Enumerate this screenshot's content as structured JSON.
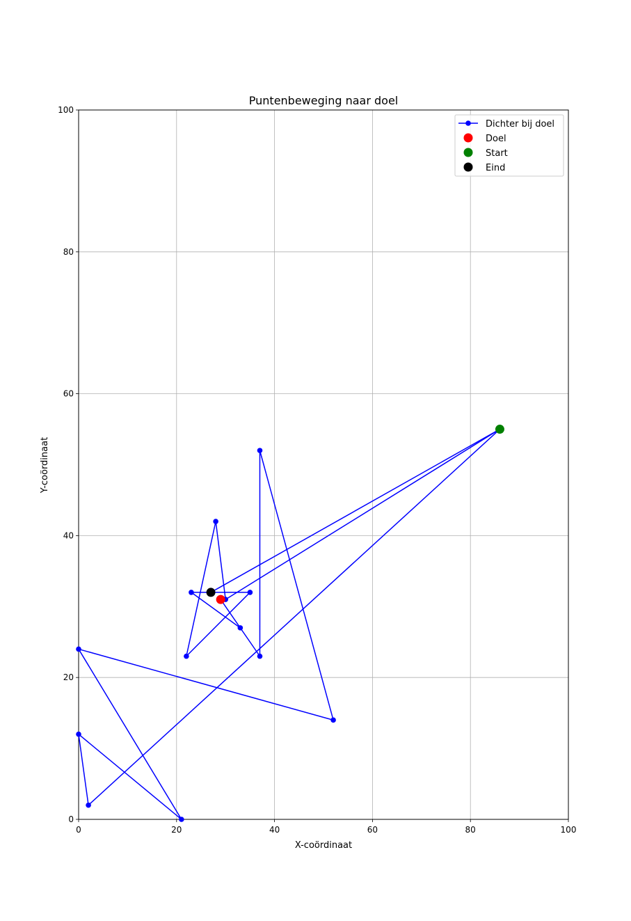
{
  "chart_data": {
    "type": "line",
    "title": "Puntenbeweging naar doel",
    "xlabel": "X-coördinaat",
    "ylabel": "Y-coördinaat",
    "xlim": [
      0,
      100
    ],
    "ylim": [
      0,
      100
    ],
    "xticks": [
      0,
      20,
      40,
      60,
      80,
      100
    ],
    "yticks": [
      0,
      20,
      40,
      60,
      80,
      100
    ],
    "grid": true,
    "legend_position": "top-right",
    "series": [
      {
        "name": "Dichter bij doel",
        "kind": "line-with-markers",
        "color": "#0000ff",
        "points": [
          [
            86,
            55
          ],
          [
            30,
            31
          ],
          [
            28,
            42
          ],
          [
            22,
            23
          ],
          [
            35,
            32
          ],
          [
            23,
            32
          ],
          [
            33,
            27
          ],
          [
            29,
            31
          ],
          [
            37,
            23
          ],
          [
            37,
            52
          ],
          [
            52,
            14
          ],
          [
            0,
            24
          ],
          [
            21,
            0
          ],
          [
            0,
            12
          ],
          [
            2,
            2
          ],
          [
            86,
            55
          ],
          [
            27,
            32
          ]
        ]
      },
      {
        "name": "Doel",
        "kind": "scatter",
        "color": "#ff0000",
        "points": [
          [
            29,
            31
          ]
        ]
      },
      {
        "name": "Start",
        "kind": "scatter",
        "color": "#008000",
        "points": [
          [
            86,
            55
          ]
        ]
      },
      {
        "name": "Eind",
        "kind": "scatter",
        "color": "#000000",
        "points": [
          [
            27,
            32
          ]
        ]
      }
    ]
  }
}
